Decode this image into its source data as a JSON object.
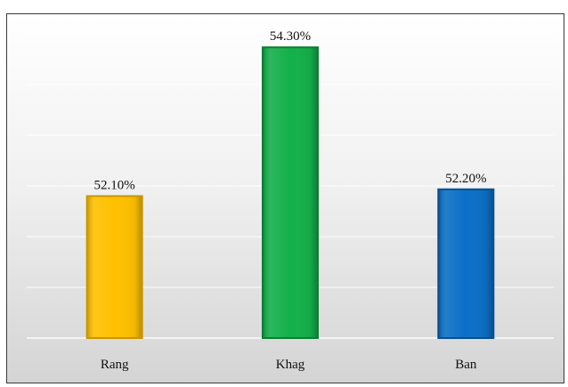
{
  "chart_data": {
    "type": "bar",
    "categories": [
      "Rang",
      "Khag",
      "Ban"
    ],
    "values": [
      52.1,
      54.3,
      52.2
    ],
    "data_labels": [
      "52.10%",
      "54.30%",
      "52.20%"
    ],
    "colors": [
      "#ffc000",
      "#14b04a",
      "#0b6fc6"
    ],
    "edge_colors": [
      "#c99600",
      "#0c7d34",
      "#074f8f"
    ],
    "ylim": [
      50,
      54.5
    ],
    "grid": true,
    "legend": "none"
  }
}
